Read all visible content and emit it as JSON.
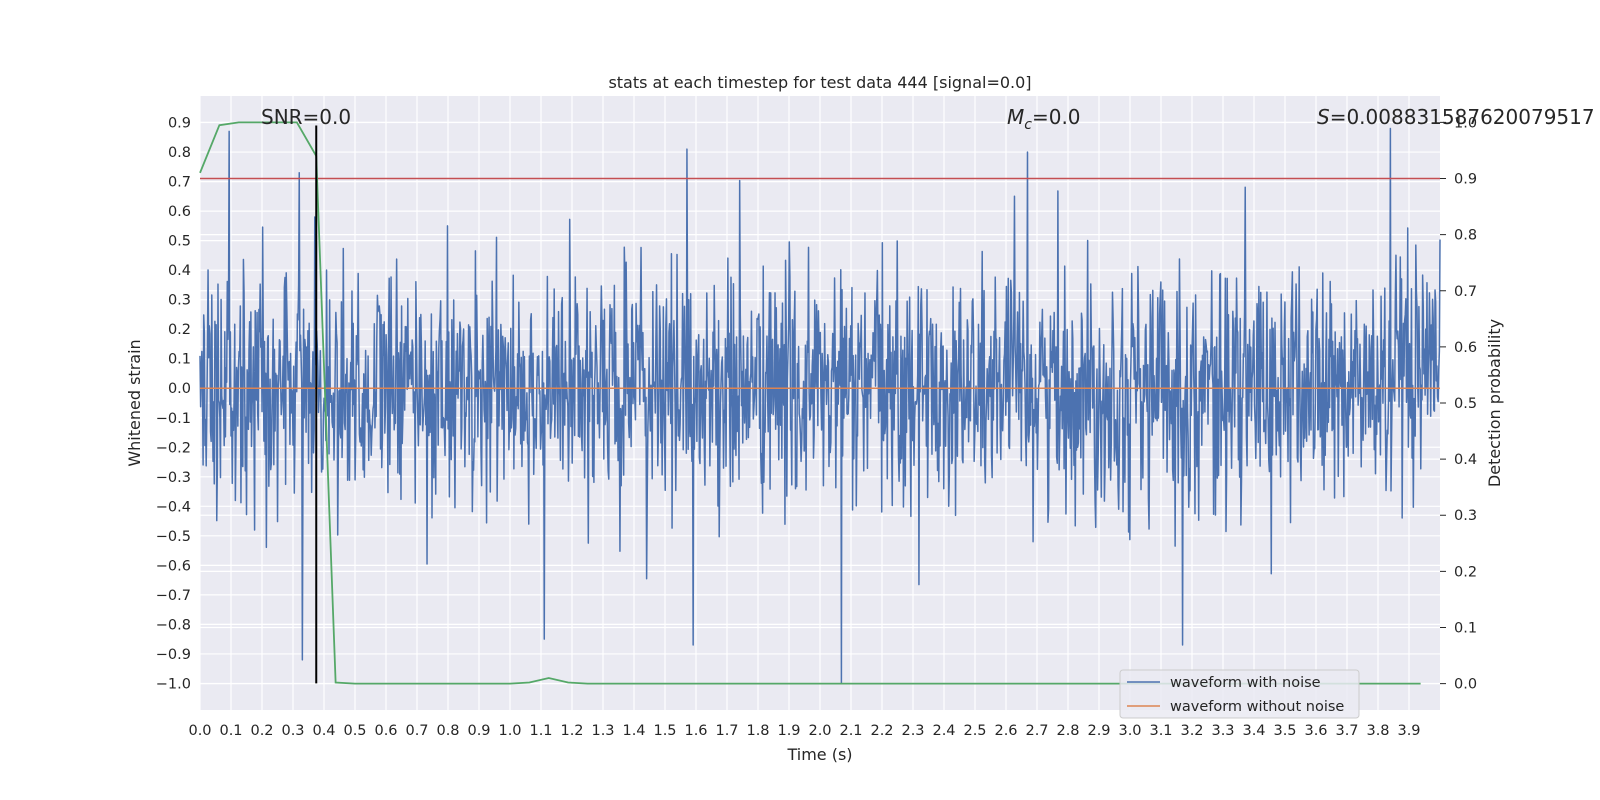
{
  "chart_data": {
    "type": "line",
    "title": "stats at each timestep for test data 444 [signal=0.0]",
    "xlabel": "Time (s)",
    "ylabel": "Whitened strain",
    "y2label": "Detection probability",
    "xlim": [
      0.0,
      4.0
    ],
    "ylim": [
      -1.09,
      0.99
    ],
    "y2lim": [
      -0.047,
      1.047
    ],
    "x_ticks": [
      0.0,
      0.1,
      0.2,
      0.3,
      0.4,
      0.5,
      0.6,
      0.7,
      0.8,
      0.9,
      1.0,
      1.1,
      1.2,
      1.3,
      1.4,
      1.5,
      1.6,
      1.7,
      1.8,
      1.9,
      2.0,
      2.1,
      2.2,
      2.3,
      2.4,
      2.5,
      2.6,
      2.7,
      2.8,
      2.9,
      3.0,
      3.1,
      3.2,
      3.3,
      3.4,
      3.5,
      3.6,
      3.7,
      3.8,
      3.9
    ],
    "y_ticks": [
      -1.0,
      -0.9,
      -0.8,
      -0.7,
      -0.6,
      -0.5,
      -0.4,
      -0.3,
      -0.2,
      -0.1,
      0.0,
      0.1,
      0.2,
      0.3,
      0.4,
      0.5,
      0.6,
      0.7,
      0.8,
      0.9
    ],
    "y2_ticks": [
      0.0,
      0.1,
      0.2,
      0.3,
      0.4,
      0.5,
      0.6,
      0.7,
      0.8,
      0.9,
      1.0
    ],
    "grid": true,
    "legend_position": "lower-right",
    "annotations": {
      "snr": "SNR=0.0",
      "mc_symbol": "M",
      "mc_sub": "c",
      "mc_value": "=0.0",
      "s_symbol": "S",
      "s_value": "=0.008831587620079517"
    },
    "series": [
      {
        "name": "waveform with noise",
        "color": "#4c72b0",
        "axis": "left",
        "description": "dense whitened noise, roughly symmetric about 0",
        "peaks": [
          {
            "x": 0.095,
            "y": 0.87
          },
          {
            "x": 0.32,
            "y": 0.73
          },
          {
            "x": 0.33,
            "y": -0.92
          },
          {
            "x": 0.37,
            "y": 0.58
          },
          {
            "x": 1.11,
            "y": -0.85
          },
          {
            "x": 1.57,
            "y": 0.81
          },
          {
            "x": 1.59,
            "y": -0.87
          },
          {
            "x": 2.07,
            "y": -1.0
          },
          {
            "x": 2.67,
            "y": 0.8
          },
          {
            "x": 3.17,
            "y": -0.87
          },
          {
            "x": 3.84,
            "y": 0.88
          }
        ]
      },
      {
        "name": "waveform without noise",
        "color": "#dd8452",
        "axis": "left",
        "x": [
          0.0,
          4.0
        ],
        "y": [
          0.0,
          0.0
        ]
      },
      {
        "name": "",
        "color": "#55a868",
        "axis": "right",
        "x": [
          0.0,
          0.0625,
          0.125,
          0.1875,
          0.25,
          0.3125,
          0.375,
          0.4375,
          0.5,
          0.5625,
          1.0,
          1.0625,
          1.125,
          1.1875,
          1.25,
          1.3125,
          3.9375
        ],
        "y": [
          0.91,
          0.995,
          1.0,
          1.0,
          1.0,
          1.0,
          0.94,
          0.002,
          0.0,
          0.0,
          0.0,
          0.002,
          0.01,
          0.002,
          0.0,
          0.0,
          0.0
        ]
      }
    ],
    "hlines": [
      {
        "axis": "right",
        "y": 0.9,
        "color": "#c44e52"
      }
    ],
    "vlines": [
      {
        "x": 0.375,
        "ymin": -1.0,
        "ymax": 0.89,
        "color": "#000000"
      }
    ]
  }
}
